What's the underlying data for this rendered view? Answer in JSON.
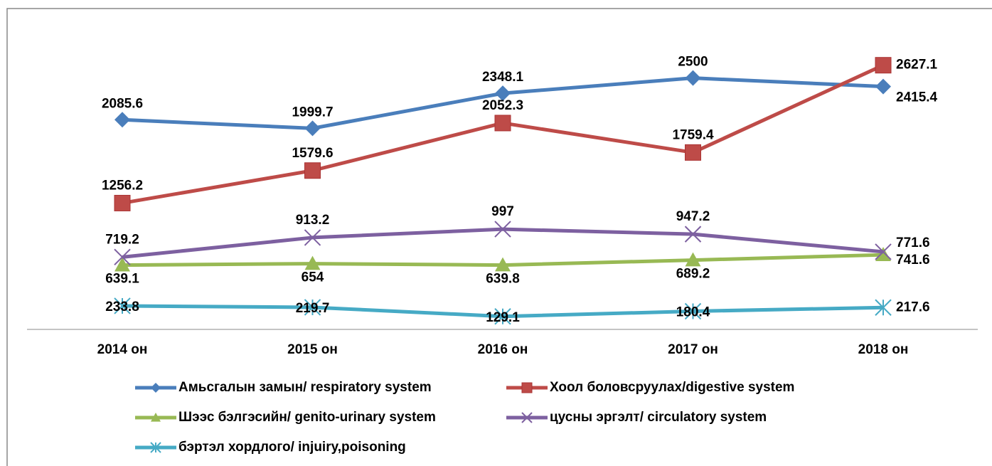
{
  "chart_data": {
    "type": "line",
    "categories": [
      "2014  он",
      "2015  он",
      "2016  он",
      "2017  он",
      "2018  он"
    ],
    "ylim": [
      0,
      3000
    ],
    "series": [
      {
        "name": "Амьсгалын замын/ respiratory system",
        "color": "#4a7ebb",
        "marker": "diamond",
        "values": [
          2085.6,
          1999.7,
          2348.1,
          2500,
          2415.4
        ]
      },
      {
        "name": "Хоол боловсруулах/digestive system",
        "color": "#be4b48",
        "marker": "square",
        "values": [
          1256.2,
          1579.6,
          2052.3,
          1759.4,
          2627.1
        ]
      },
      {
        "name": "Шээс бэлгэсийн/ genito-urinary system",
        "color": "#98b954",
        "marker": "triangle",
        "values": [
          639.1,
          654,
          639.8,
          689.2,
          741.6
        ]
      },
      {
        "name": "цусны эргэлт/ circulatory system",
        "color": "#7d60a0",
        "marker": "x",
        "values": [
          719.2,
          913.2,
          997,
          947.2,
          771.6
        ]
      },
      {
        "name": "бэртэл хордлого/ injuiry,poisoning",
        "color": "#46aac5",
        "marker": "star",
        "values": [
          233.8,
          219.7,
          129.1,
          180.4,
          217.6
        ]
      }
    ]
  }
}
